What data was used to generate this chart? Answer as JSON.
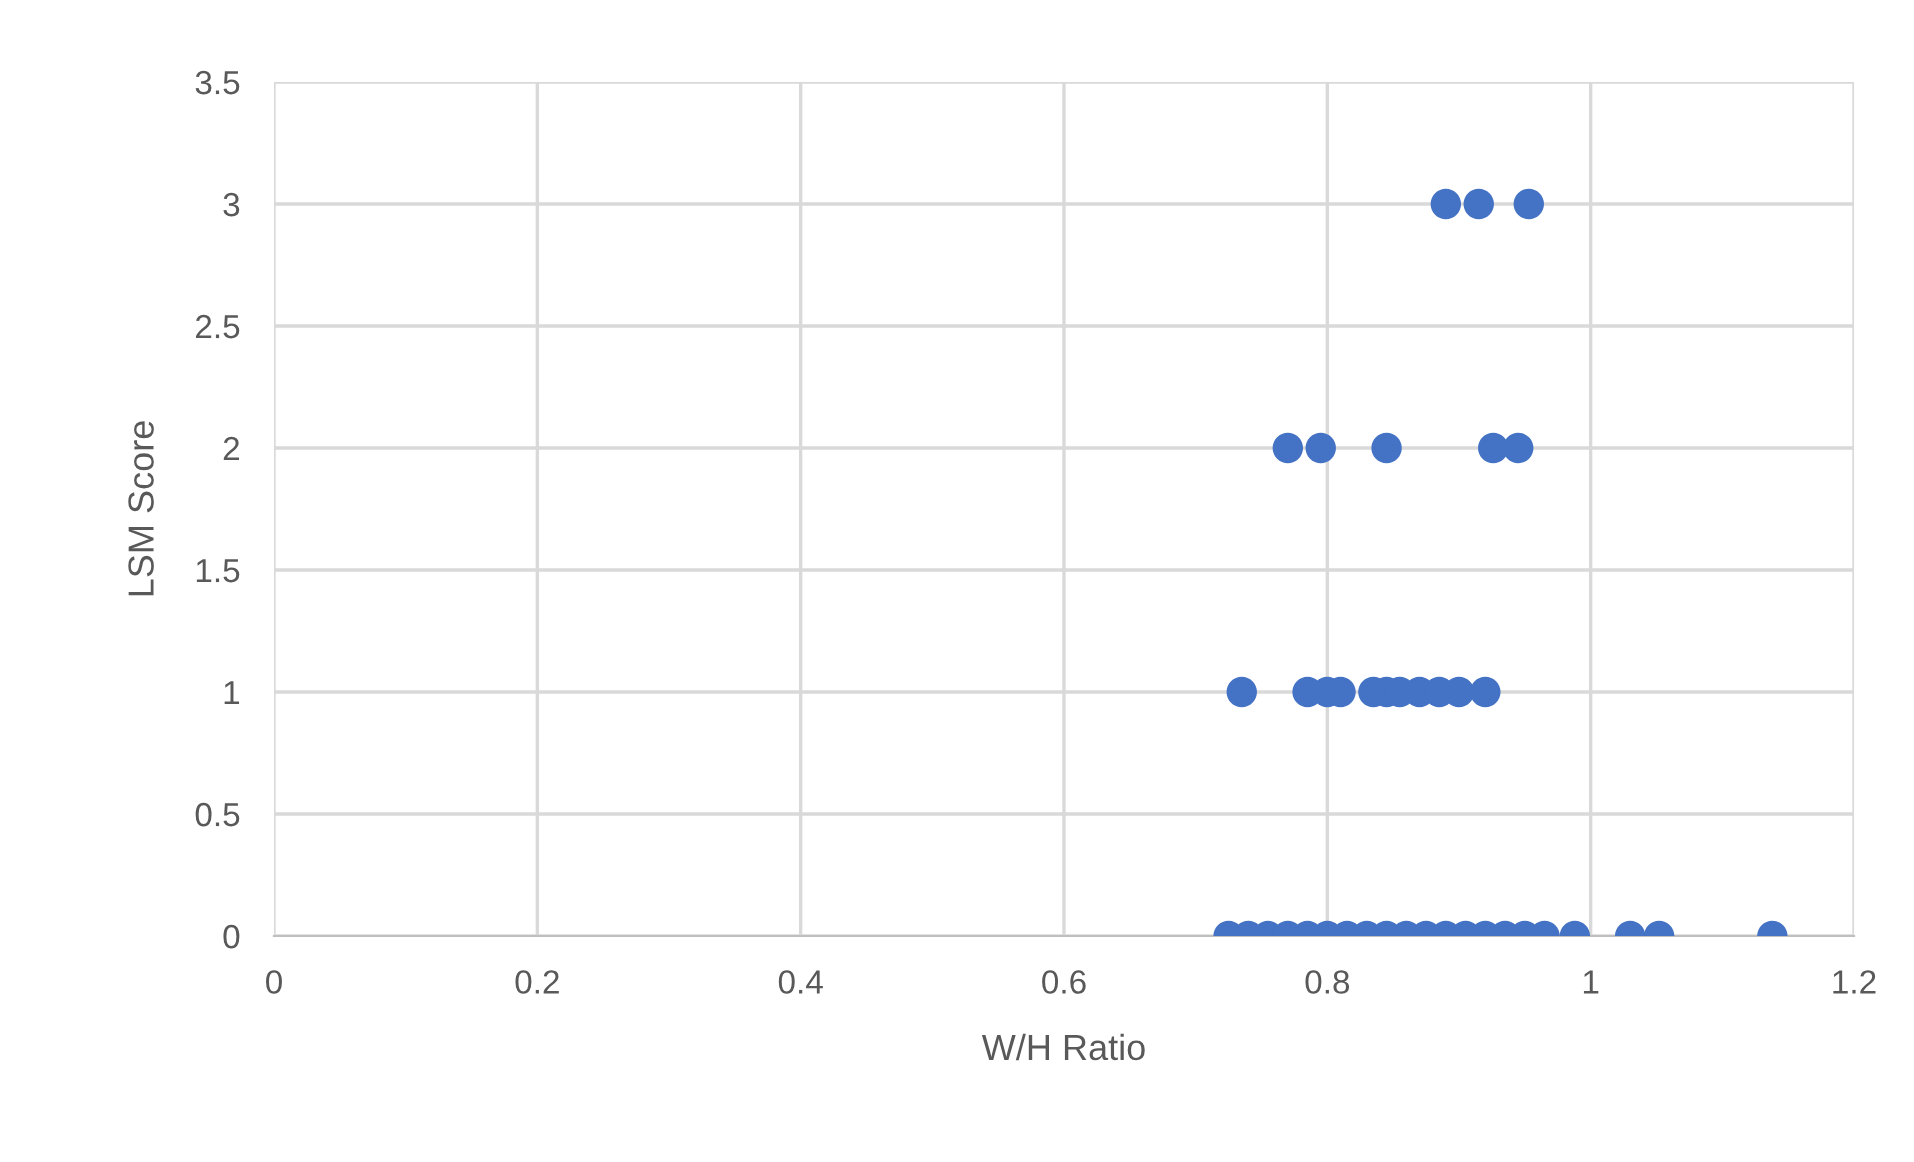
{
  "chart_data": {
    "type": "scatter",
    "xlabel": "W/H Ratio",
    "ylabel": "LSM Score",
    "xlim": [
      0,
      1.2
    ],
    "ylim": [
      0,
      3.5
    ],
    "xticks": [
      0,
      0.2,
      0.4,
      0.6,
      0.8,
      1,
      1.2
    ],
    "yticks": [
      0,
      0.5,
      1,
      1.5,
      2,
      2.5,
      3,
      3.5
    ],
    "grid": true,
    "marker": "circle",
    "series": [
      {
        "color": "#4472c4",
        "x": [
          0.89,
          0.915,
          0.953,
          0.77,
          0.795,
          0.845,
          0.926,
          0.945,
          0.735,
          0.785,
          0.8,
          0.81,
          0.835,
          0.845,
          0.855,
          0.87,
          0.885,
          0.9,
          0.92,
          0.725,
          0.74,
          0.755,
          0.77,
          0.785,
          0.8,
          0.815,
          0.83,
          0.845,
          0.86,
          0.875,
          0.89,
          0.905,
          0.92,
          0.935,
          0.95,
          0.965,
          0.988,
          1.03,
          1.052,
          1.138
        ],
        "values": [
          3,
          3,
          3,
          2,
          2,
          2,
          2,
          2,
          1,
          1,
          1,
          1,
          1,
          1,
          1,
          1,
          1,
          1,
          1,
          0,
          0,
          0,
          0,
          0,
          0,
          0,
          0,
          0,
          0,
          0,
          0,
          0,
          0,
          0,
          0,
          0,
          0,
          0,
          0,
          0
        ]
      }
    ]
  }
}
